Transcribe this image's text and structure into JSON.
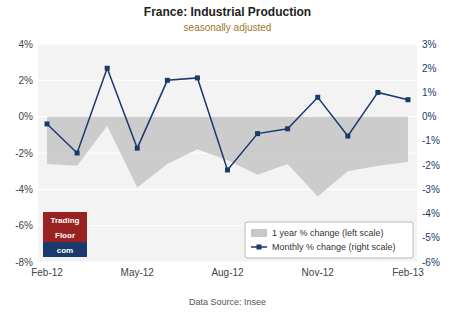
{
  "chart_data": {
    "type": "area",
    "title": "France: Industrial Production",
    "subtitle": "seasonally adjusted",
    "annotations": [
      {
        "text": "Data Source: Insee"
      },
      {
        "text": "Trading",
        "color": "#992222"
      },
      {
        "text": "Floor",
        "color": "#992222"
      },
      {
        "text": "com",
        "color": "#1a3a6b"
      }
    ],
    "categories": [
      "Feb-12",
      null,
      null,
      "May-12",
      null,
      null,
      "Aug-12",
      null,
      null,
      "Nov-12",
      null,
      null,
      "Feb-13"
    ],
    "series": [
      {
        "name": "1 year % change (left scale)",
        "type": "area",
        "color": "#c8c8c8",
        "values": [
          -2.6,
          -2.7,
          -0.5,
          -3.9,
          -2.6,
          -1.8,
          -2.4,
          -3.2,
          -2.6,
          -4.4,
          -3.0,
          -2.7,
          -2.5
        ]
      },
      {
        "name": "Monthly % change (right scale)",
        "type": "line",
        "axis": "y2",
        "color": "#1a3a6b",
        "marker": "square",
        "values": [
          -0.3,
          -1.5,
          2.0,
          -1.3,
          1.5,
          1.6,
          -2.2,
          -0.7,
          -0.5,
          0.8,
          -0.8,
          1.0,
          0.7
        ]
      }
    ],
    "ylim": [
      -8,
      4
    ],
    "yticks": [
      {
        "value": -8,
        "label": "-8%"
      },
      {
        "value": -6,
        "label": "-6%"
      },
      {
        "value": -4,
        "label": "-4%"
      },
      {
        "value": -2,
        "label": "-2%"
      },
      {
        "value": 0,
        "label": "0%"
      },
      {
        "value": 2,
        "label": "2%"
      },
      {
        "value": 4,
        "label": "4%"
      }
    ],
    "y2lim": [
      -6,
      3
    ],
    "y2ticks": [
      {
        "value": -6,
        "label": "-6%"
      },
      {
        "value": -5,
        "label": "-5%"
      },
      {
        "value": -4,
        "label": "-4%"
      },
      {
        "value": -3,
        "label": "-3%"
      },
      {
        "value": -2,
        "label": "-2%"
      },
      {
        "value": -1,
        "label": "-1%"
      },
      {
        "value": 0,
        "label": "0%"
      },
      {
        "value": 1,
        "label": "1%"
      },
      {
        "value": 2,
        "label": "2%"
      },
      {
        "value": 3,
        "label": "3%"
      }
    ],
    "grid": true,
    "legend": "lower right"
  }
}
